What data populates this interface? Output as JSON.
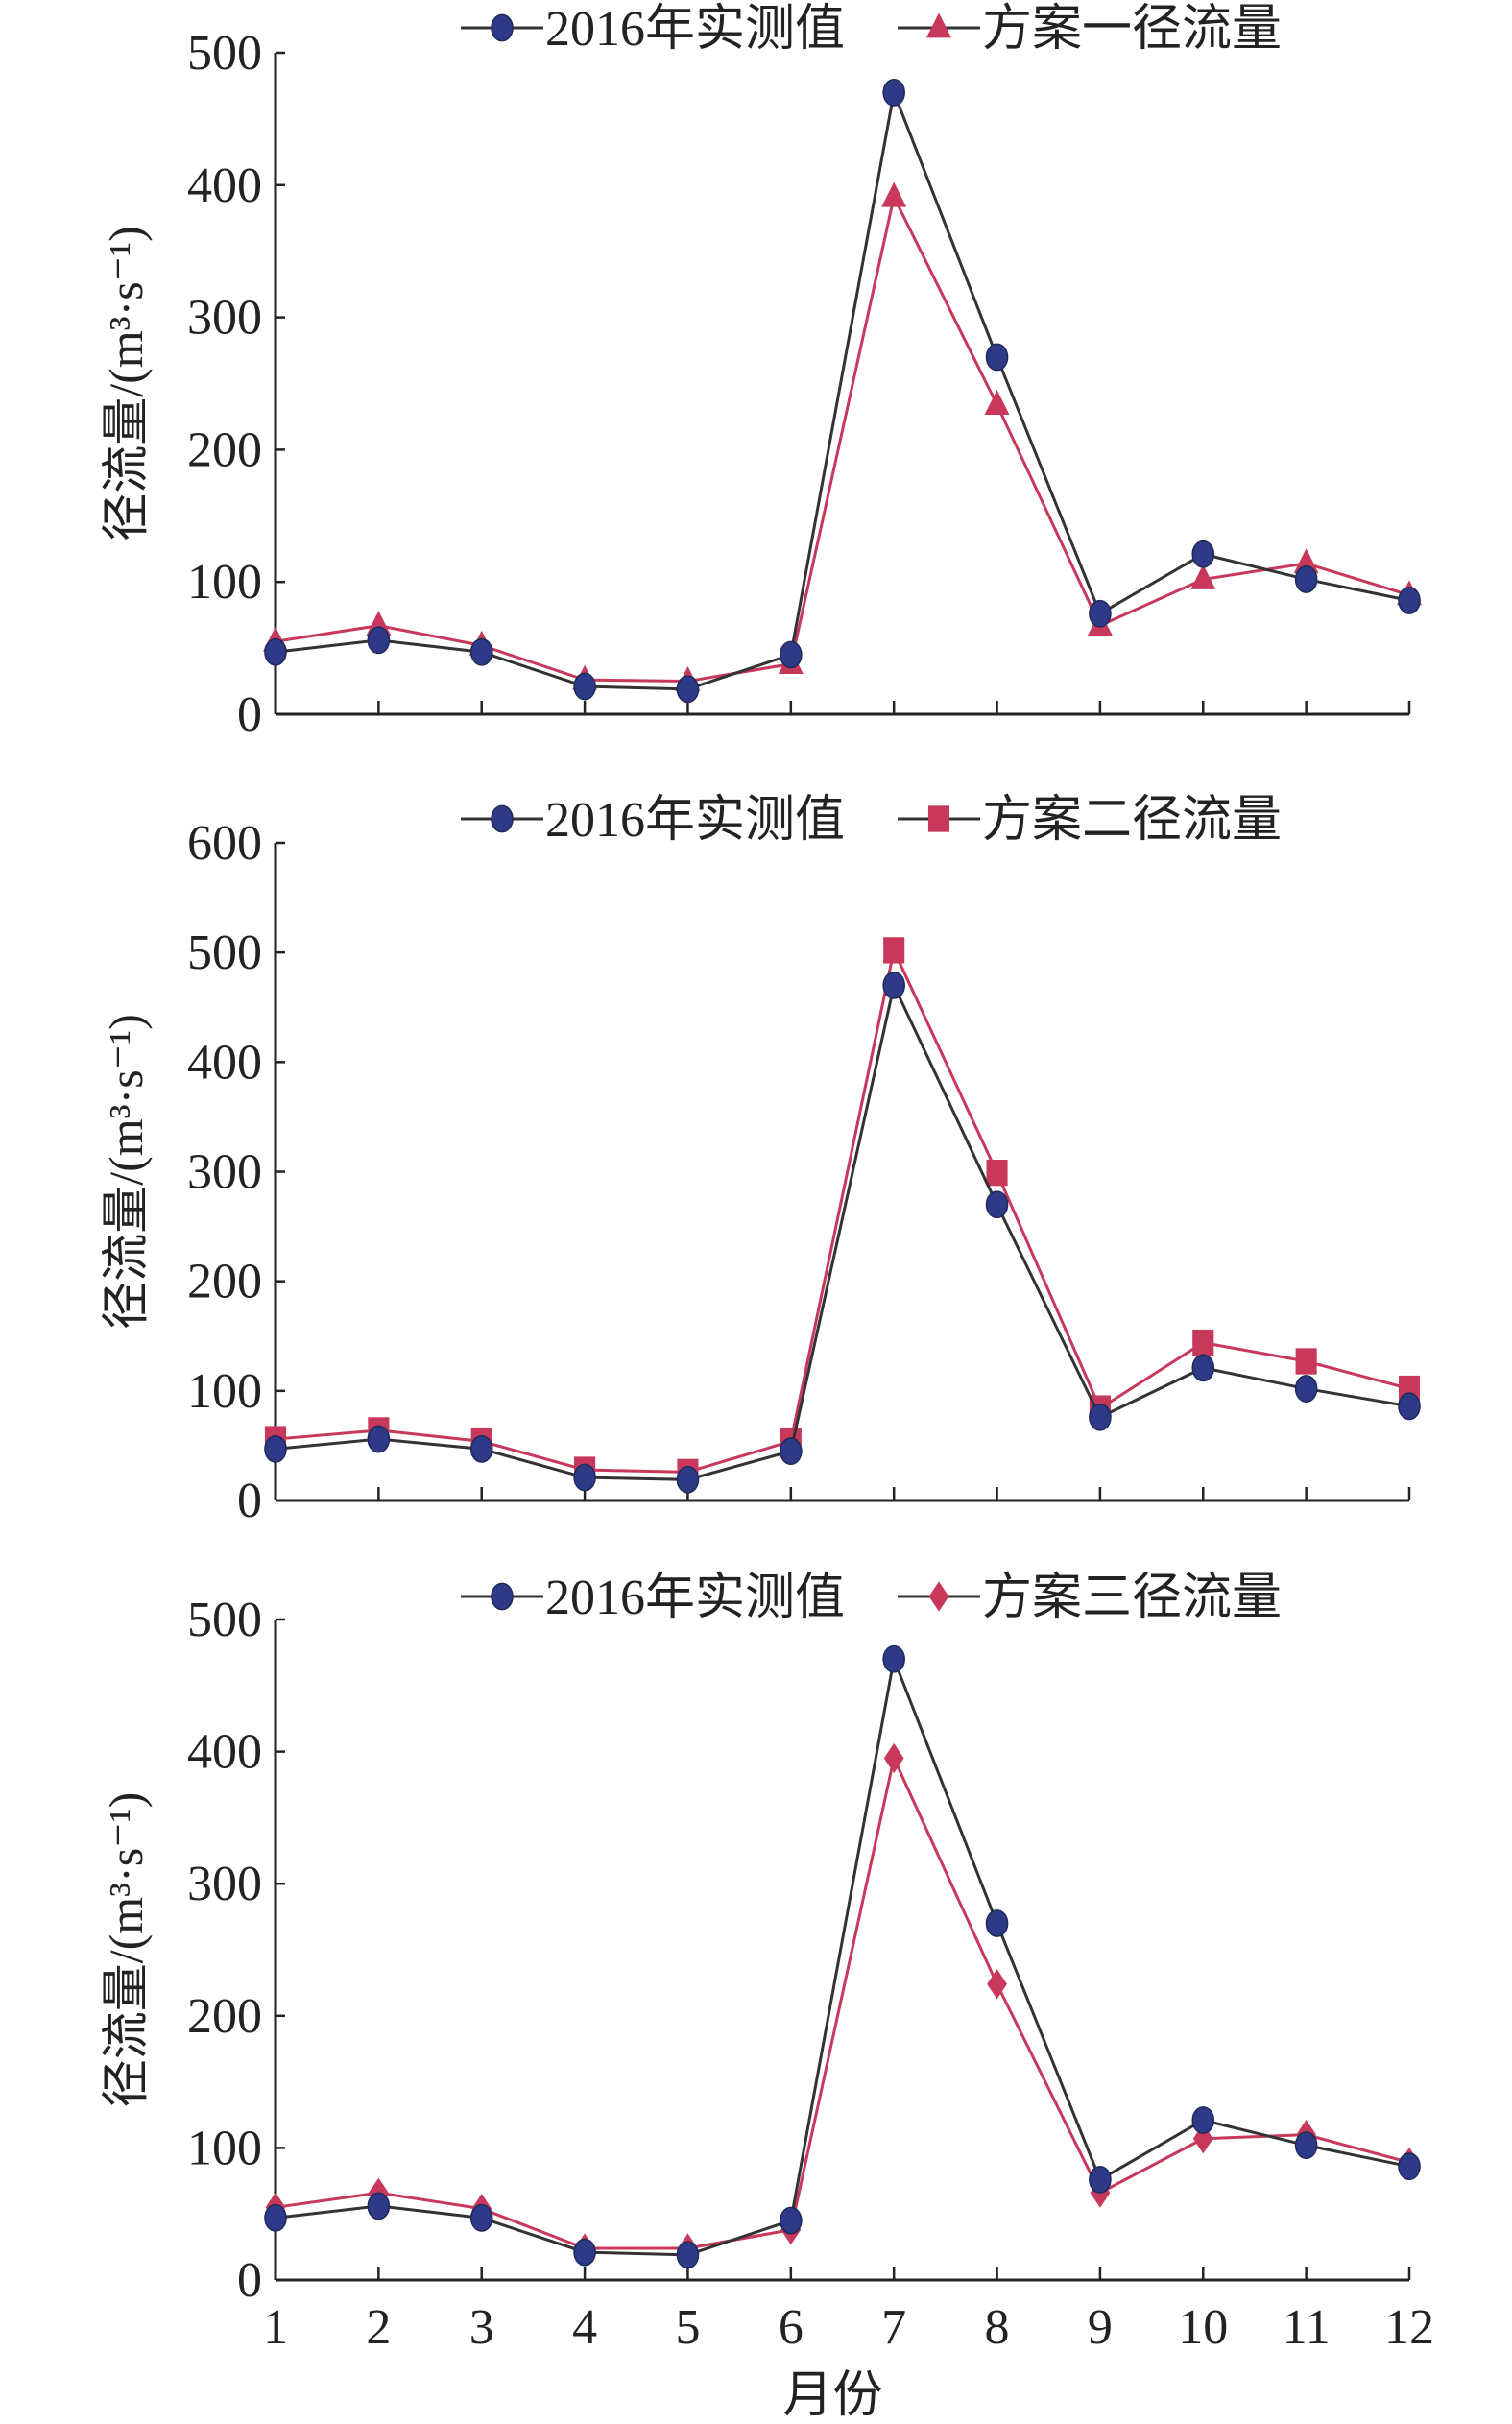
{
  "chart_data": [
    {
      "type": "line",
      "title": "",
      "xlabel": "",
      "ylabel": "径流量/(m³·s⁻¹)",
      "ylim": [
        0,
        500
      ],
      "yticks": [
        0,
        100,
        200,
        300,
        400,
        500
      ],
      "x": [
        1,
        2,
        3,
        4,
        5,
        6,
        7,
        8,
        9,
        10,
        11,
        12
      ],
      "show_xtick_labels": false,
      "legend_position": "top",
      "series": [
        {
          "name": "2016年实测值",
          "marker": "circle",
          "color": "#2e3a87",
          "line_color": "#333333",
          "values": [
            47,
            56,
            47,
            21,
            19,
            45,
            470,
            270,
            76,
            121,
            102,
            86
          ]
        },
        {
          "name": "方案一径流量",
          "marker": "triangle",
          "color": "#c8385a",
          "line_color": "#c8385a",
          "values": [
            55,
            67,
            52,
            26,
            25,
            38,
            391,
            234,
            67,
            102,
            114,
            90
          ]
        }
      ]
    },
    {
      "type": "line",
      "title": "",
      "xlabel": "",
      "ylabel": "径流量/(m³·s⁻¹)",
      "ylim": [
        0,
        600
      ],
      "yticks": [
        0,
        100,
        200,
        300,
        400,
        500,
        600
      ],
      "x": [
        1,
        2,
        3,
        4,
        5,
        6,
        7,
        8,
        9,
        10,
        11,
        12
      ],
      "show_xtick_labels": false,
      "legend_position": "top",
      "series": [
        {
          "name": "2016年实测值",
          "marker": "circle",
          "color": "#2e3a87",
          "line_color": "#333333",
          "values": [
            47,
            56,
            47,
            21,
            19,
            45,
            470,
            270,
            76,
            121,
            102,
            86
          ]
        },
        {
          "name": "方案二径流量",
          "marker": "square",
          "color": "#c8385a",
          "line_color": "#c8385a",
          "values": [
            56,
            64,
            54,
            28,
            26,
            54,
            502,
            299,
            84,
            144,
            127,
            102
          ]
        }
      ]
    },
    {
      "type": "line",
      "title": "",
      "xlabel": "月份",
      "ylabel": "径流量/(m³·s⁻¹)",
      "ylim": [
        0,
        500
      ],
      "yticks": [
        0,
        100,
        200,
        300,
        400,
        500
      ],
      "x": [
        1,
        2,
        3,
        4,
        5,
        6,
        7,
        8,
        9,
        10,
        11,
        12
      ],
      "show_xtick_labels": true,
      "legend_position": "top",
      "series": [
        {
          "name": "2016年实测值",
          "marker": "circle",
          "color": "#2e3a87",
          "line_color": "#333333",
          "values": [
            47,
            56,
            47,
            21,
            19,
            45,
            470,
            270,
            76,
            121,
            102,
            86
          ]
        },
        {
          "name": "方案三径流量",
          "marker": "diamond",
          "color": "#c8385a",
          "line_color": "#c8385a",
          "values": [
            55,
            66,
            54,
            24,
            24,
            38,
            395,
            224,
            66,
            107,
            110,
            89
          ]
        }
      ]
    }
  ]
}
